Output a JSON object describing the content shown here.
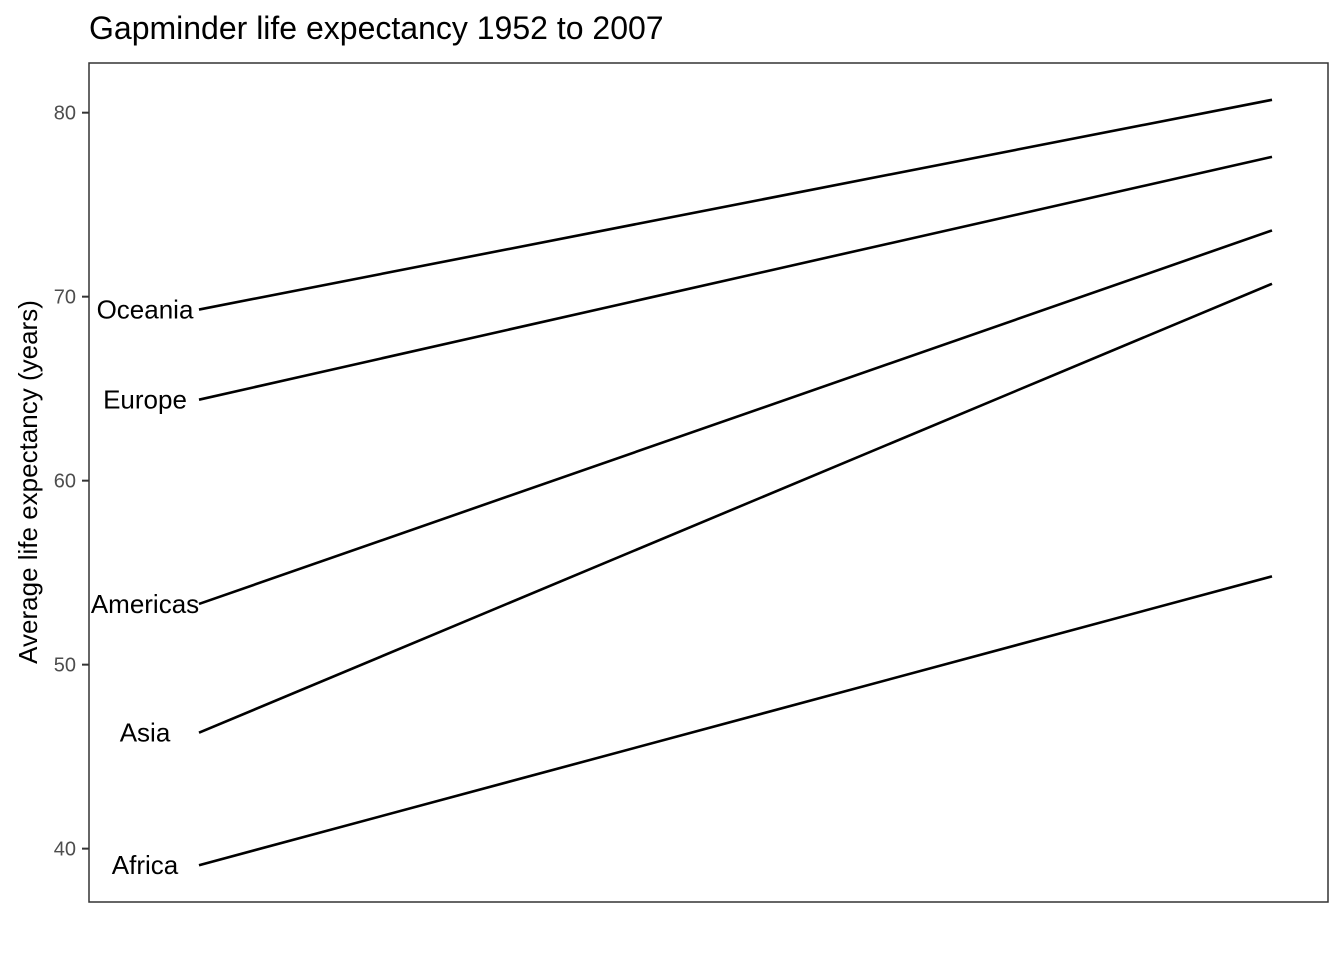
{
  "chart_data": {
    "type": "line",
    "title": "Gapminder life expectancy 1952 to 2007",
    "xlabel": "",
    "ylabel": "Average life expectancy (years)",
    "x": [
      1952,
      2007
    ],
    "ylim": [
      37.1,
      82.7
    ],
    "yticks": [
      40,
      50,
      60,
      70,
      80
    ],
    "ytick_labels": [
      "40",
      "50",
      "60",
      "70",
      "80"
    ],
    "grid": false,
    "legend": "none",
    "series": [
      {
        "name": "Africa",
        "values": [
          39.1,
          54.8
        ]
      },
      {
        "name": "Americas",
        "values": [
          53.3,
          73.6
        ]
      },
      {
        "name": "Asia",
        "values": [
          46.3,
          70.7
        ]
      },
      {
        "name": "Europe",
        "values": [
          64.4,
          77.6
        ]
      },
      {
        "name": "Oceania",
        "values": [
          69.3,
          80.7
        ]
      }
    ],
    "line_color": "#000000"
  }
}
